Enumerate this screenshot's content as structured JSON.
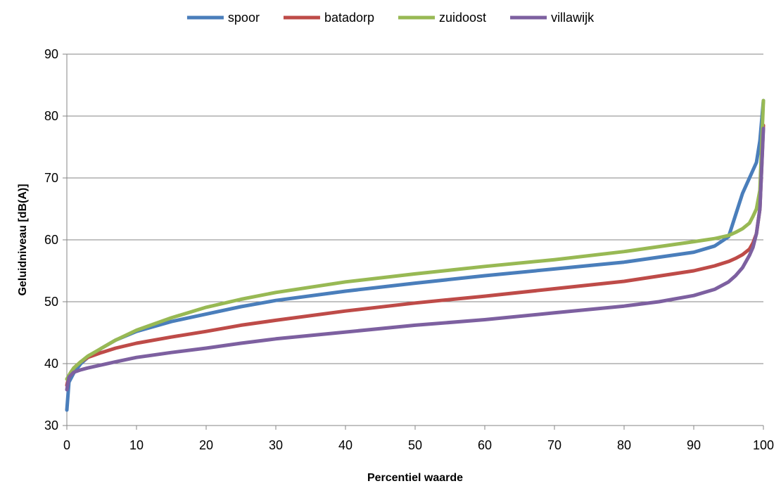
{
  "chart_data": {
    "type": "line",
    "title": "",
    "xlabel": "Percentiel waarde",
    "ylabel": "Geluidniveau [dB(A)]",
    "xlim": [
      0,
      100
    ],
    "ylim": [
      30,
      90
    ],
    "xticks": [
      0,
      10,
      20,
      30,
      40,
      50,
      60,
      70,
      80,
      90,
      100
    ],
    "yticks": [
      30,
      40,
      50,
      60,
      70,
      80,
      90
    ],
    "grid": "horizontal",
    "legend_position": "top",
    "series": [
      {
        "name": "spoor",
        "color": "#4A7EBB",
        "x": [
          0,
          0.3,
          1,
          2,
          3,
          5,
          7,
          10,
          15,
          20,
          25,
          30,
          40,
          50,
          60,
          70,
          80,
          90,
          93,
          95,
          96,
          97,
          98,
          99,
          99.5,
          100
        ],
        "y": [
          32.5,
          37,
          38.5,
          40,
          41,
          42.5,
          43.8,
          45.2,
          46.8,
          48,
          49.2,
          50.2,
          51.7,
          53,
          54.2,
          55.3,
          56.4,
          58,
          59,
          60.5,
          64,
          67.5,
          70,
          72.5,
          76,
          82.5
        ]
      },
      {
        "name": "batadorp",
        "color": "#BE4B48",
        "x": [
          0,
          0.3,
          1,
          2,
          3,
          5,
          7,
          10,
          15,
          20,
          25,
          30,
          40,
          50,
          60,
          70,
          80,
          90,
          93,
          95,
          96,
          97,
          98,
          98.5,
          99,
          99.5,
          100
        ],
        "y": [
          36.5,
          38,
          39.3,
          40.3,
          41,
          41.8,
          42.5,
          43.3,
          44.3,
          45.2,
          46.2,
          47,
          48.5,
          49.8,
          50.9,
          52.1,
          53.3,
          55,
          55.8,
          56.5,
          57,
          57.6,
          58.5,
          59.5,
          61,
          65,
          78.5
        ]
      },
      {
        "name": "zuidoost",
        "color": "#98B954",
        "x": [
          0,
          0.5,
          1,
          2,
          3,
          5,
          7,
          10,
          15,
          20,
          25,
          30,
          40,
          50,
          60,
          70,
          80,
          90,
          93,
          95,
          96,
          97,
          98,
          98.5,
          99,
          99.5,
          100
        ],
        "y": [
          37.5,
          38.5,
          39.3,
          40.3,
          41.2,
          42.5,
          43.8,
          45.4,
          47.4,
          49.1,
          50.4,
          51.5,
          53.2,
          54.5,
          55.7,
          56.8,
          58.1,
          59.7,
          60.2,
          60.7,
          61.2,
          61.8,
          62.7,
          63.8,
          65,
          68,
          82.5
        ]
      },
      {
        "name": "villawijk",
        "color": "#7D60A0",
        "x": [
          0,
          0.3,
          1,
          2,
          3,
          5,
          7,
          10,
          15,
          20,
          25,
          30,
          40,
          50,
          60,
          70,
          80,
          85,
          90,
          93,
          95,
          96,
          97,
          98,
          98.5,
          99,
          99.5,
          100
        ],
        "y": [
          35.8,
          37.8,
          38.6,
          39,
          39.3,
          39.8,
          40.3,
          41,
          41.8,
          42.5,
          43.3,
          44,
          45.1,
          46.2,
          47.1,
          48.2,
          49.3,
          50,
          51,
          52,
          53.2,
          54.2,
          55.5,
          57.5,
          58.8,
          61,
          65,
          78
        ]
      }
    ]
  }
}
